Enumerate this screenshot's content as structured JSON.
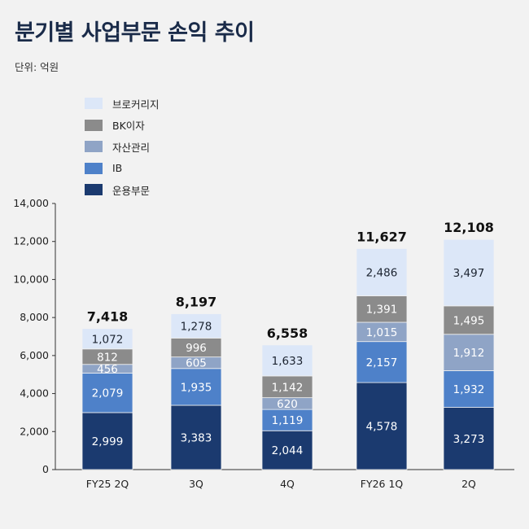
{
  "title": "분기별 사업부문 손익 추이",
  "unit_label": "단위: 억원",
  "colors": {
    "background": "#f2f2f2",
    "title": "#1a2b49"
  },
  "chart_data": {
    "type": "bar",
    "stacked": true,
    "categories": [
      "FY25 2Q",
      "3Q",
      "4Q",
      "FY26 1Q",
      "2Q"
    ],
    "totals": [
      "7,418",
      "8,197",
      "6,558",
      "11,627",
      "12,108"
    ],
    "ylim": [
      0,
      14000
    ],
    "yticks": [
      0,
      2000,
      4000,
      6000,
      8000,
      10000,
      12000,
      14000
    ],
    "ytick_labels": [
      "0",
      "2,000",
      "4,000",
      "6,000",
      "8,000",
      "10,000",
      "12,000",
      "14,000"
    ],
    "legend_position": "top-left",
    "series": [
      {
        "name": "운용부문",
        "color": "#1b3a6f",
        "values": [
          2999,
          3383,
          2044,
          4578,
          3273
        ],
        "labels": [
          "2,999",
          "3,383",
          "2,044",
          "4,578",
          "3,273"
        ],
        "label_color": "#ffffff"
      },
      {
        "name": "IB",
        "color": "#4e81c9",
        "values": [
          2079,
          1935,
          1119,
          2157,
          1932
        ],
        "labels": [
          "2,079",
          "1,935",
          "1,119",
          "2,157",
          "1,932"
        ],
        "label_color": "#ffffff"
      },
      {
        "name": "자산관리",
        "color": "#8fa4c6",
        "values": [
          456,
          605,
          620,
          1015,
          1912
        ],
        "labels": [
          "456",
          "605",
          "620",
          "1,015",
          "1,912"
        ],
        "label_color": "#ffffff"
      },
      {
        "name": "BK이자",
        "color": "#8b8b8b",
        "values": [
          812,
          996,
          1142,
          1391,
          1495
        ],
        "labels": [
          "812",
          "996",
          "1,142",
          "1,391",
          "1,495"
        ],
        "label_color": "#ffffff"
      },
      {
        "name": "브로커리지",
        "color": "#dce7f8",
        "values": [
          1072,
          1278,
          1633,
          2486,
          3497
        ],
        "labels": [
          "1,072",
          "1,278",
          "1,633",
          "2,486",
          "3,497"
        ],
        "label_color": "#1c2431"
      }
    ]
  }
}
